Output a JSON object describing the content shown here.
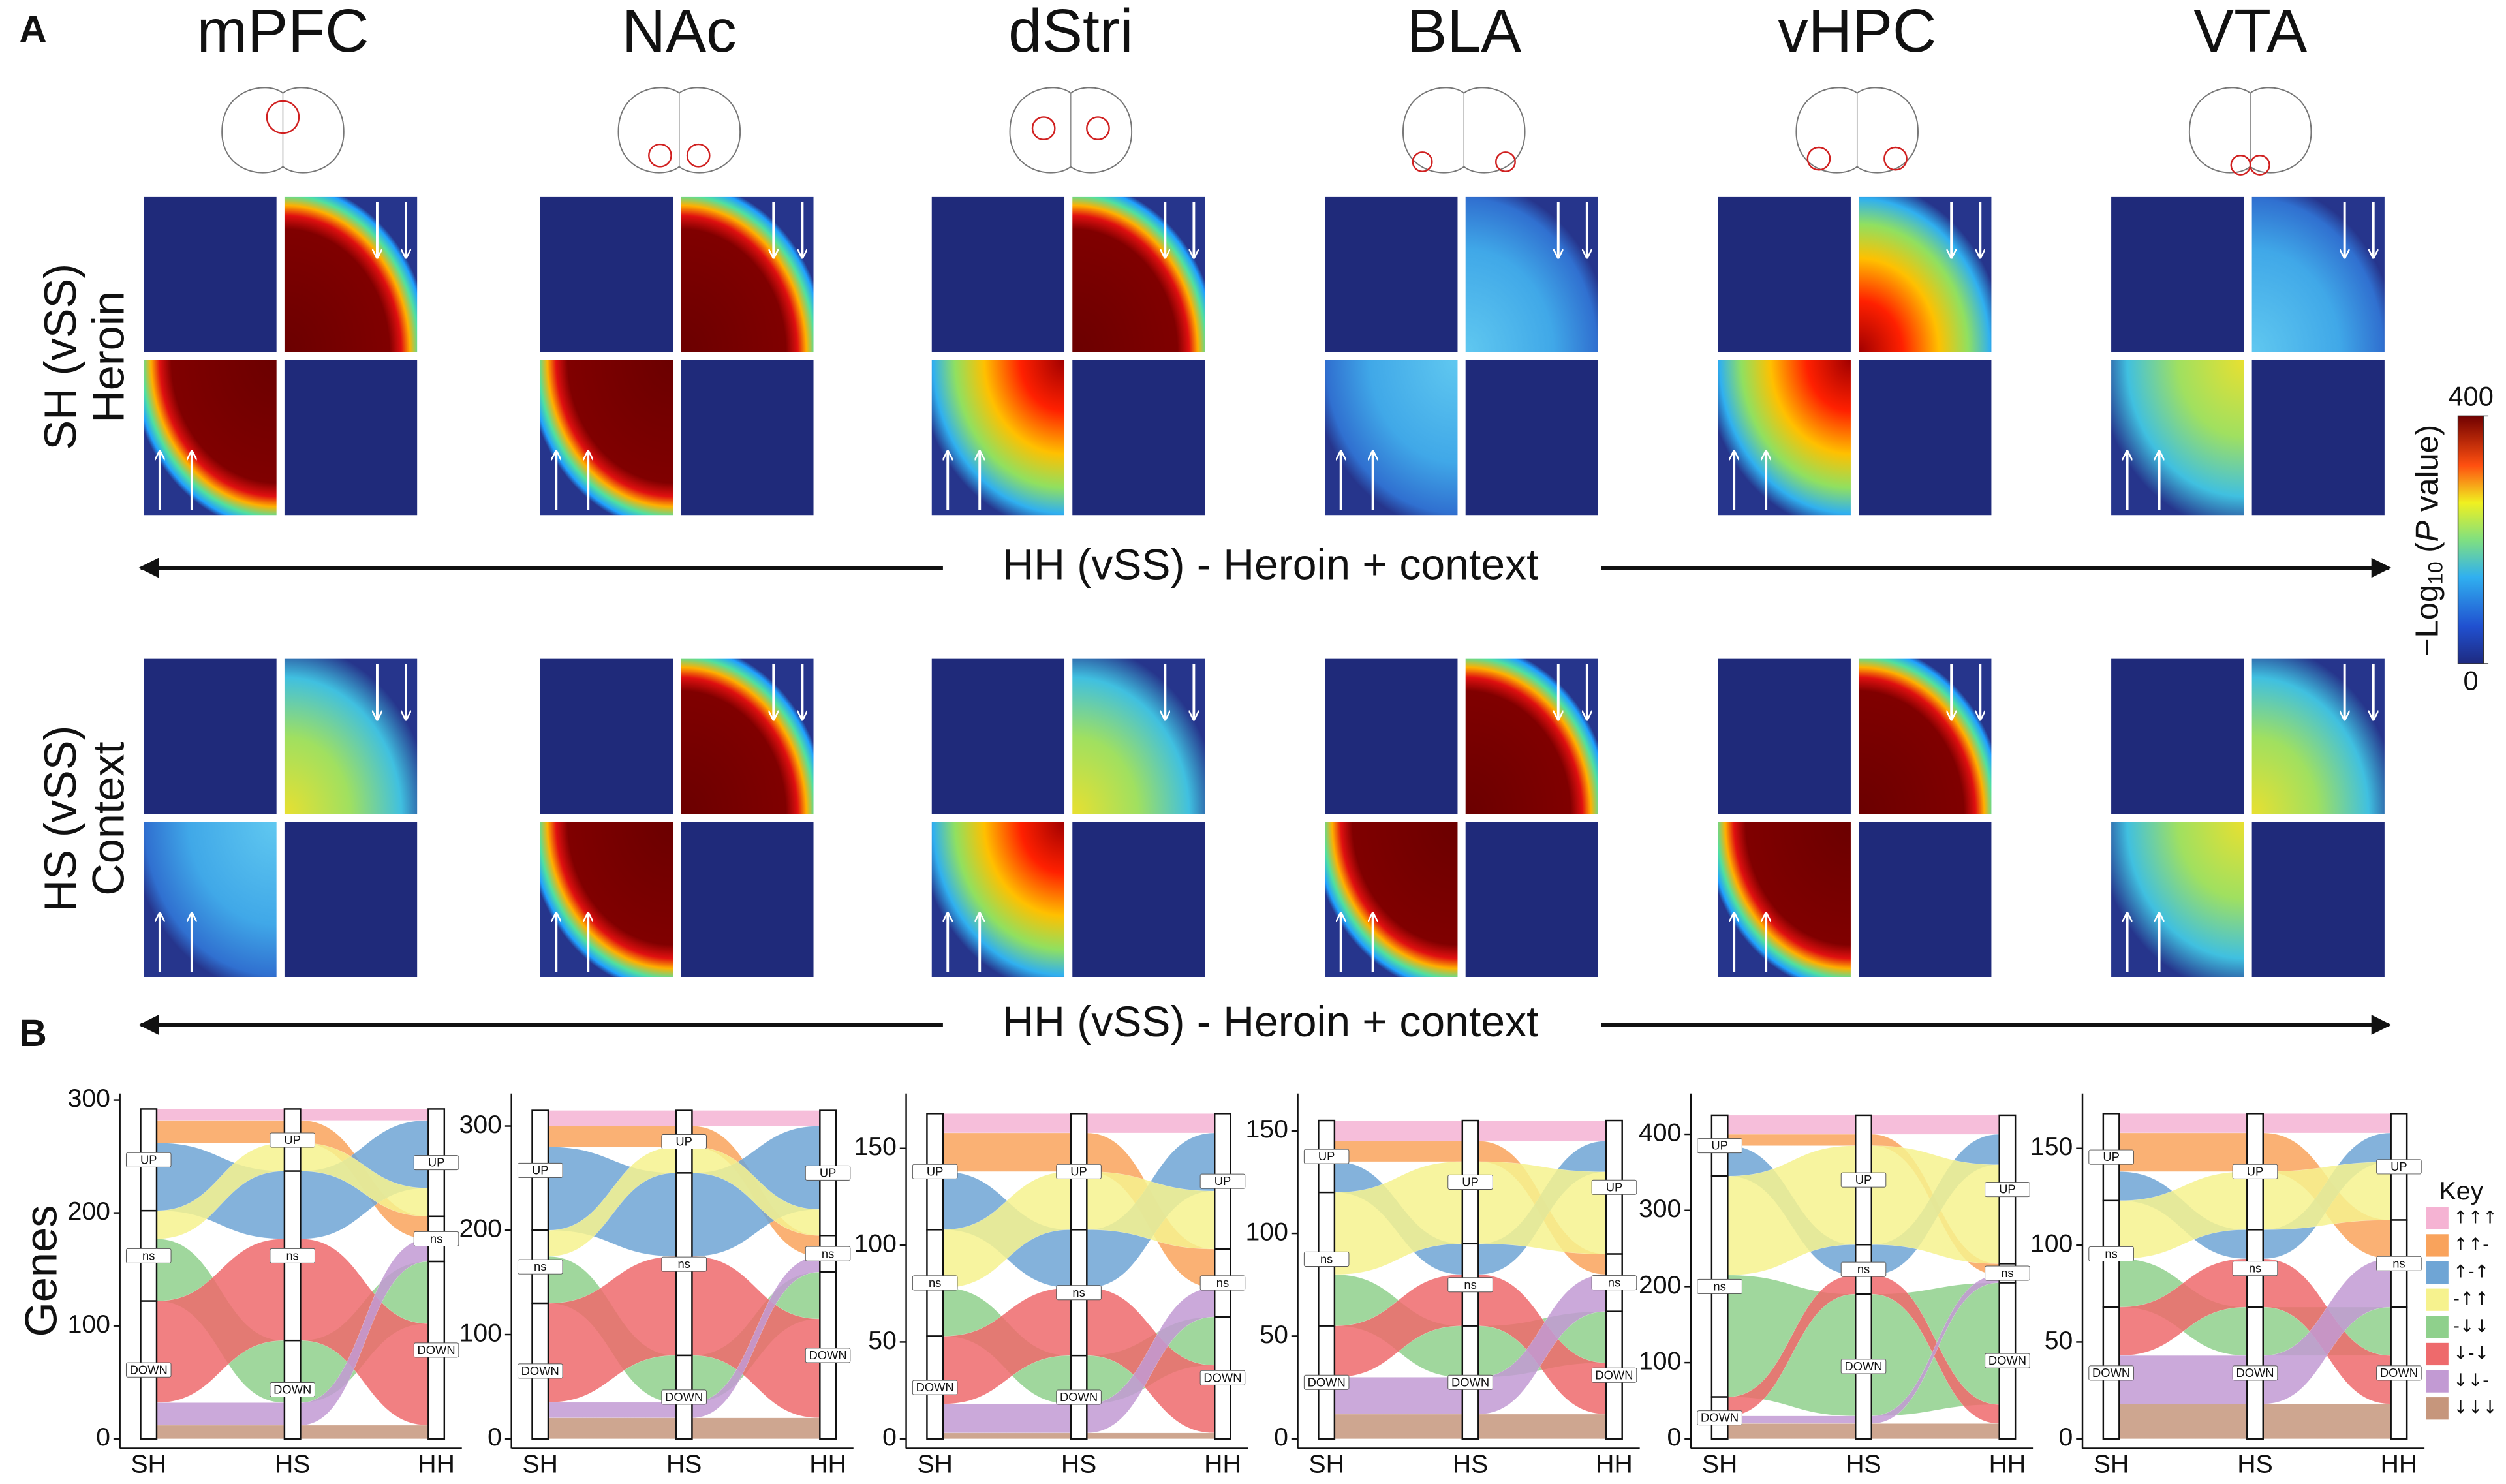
{
  "panel_a": {
    "label": "A",
    "regions": [
      "mPFC",
      "NAc",
      "dStri",
      "BLA",
      "vHPC",
      "VTA"
    ],
    "rows": [
      {
        "label": "SH (vSS)",
        "sublabel": "Heroin"
      },
      {
        "label": "HS (vSS)",
        "sublabel": "Context"
      }
    ],
    "arrow_labels": [
      "HH (vSS) - Heroin + context",
      "HH (vSS) - Heroin + context"
    ],
    "colorbar": {
      "label": [
        "−Log",
        "10",
        " (",
        "P",
        " value)"
      ],
      "lim": [
        0,
        400
      ],
      "ticks": [
        0,
        400
      ]
    }
  },
  "panel_b": {
    "label": "B",
    "y_label": "Genes",
    "axes": [
      "SH",
      "HS",
      "HH"
    ],
    "strata": [
      "UP",
      "ns",
      "DOWN"
    ],
    "key": {
      "title": "Key",
      "entries": [
        {
          "name": "↑↑↑",
          "color": "#f5b3d3"
        },
        {
          "name": "↑↑-",
          "color": "#f9a35c"
        },
        {
          "name": "↑-↑",
          "color": "#6fa5d5"
        },
        {
          "name": "-↑↑",
          "color": "#f6f28e"
        },
        {
          "name": "-↓↓",
          "color": "#8fd08c"
        },
        {
          "name": "↓-↓",
          "color": "#ee6a6c"
        },
        {
          "name": "↓↓-",
          "color": "#c29ad3"
        },
        {
          "name": "↓↓↓",
          "color": "#c6967c"
        }
      ]
    },
    "panels": [
      {
        "ylim": [
          0,
          300
        ],
        "yticks": [
          0,
          100,
          200,
          300
        ],
        "counts": [
          10,
          20,
          60,
          25,
          55,
          90,
          20,
          12
        ]
      },
      {
        "ylim": [
          0,
          325
        ],
        "yticks": [
          0,
          100,
          200,
          300
        ],
        "counts": [
          15,
          20,
          80,
          25,
          45,
          95,
          15,
          20
        ]
      },
      {
        "ylim": [
          0,
          175
        ],
        "yticks": [
          0,
          50,
          100,
          150
        ],
        "counts": [
          10,
          20,
          30,
          30,
          25,
          35,
          15,
          3
        ]
      },
      {
        "ylim": [
          0,
          165
        ],
        "yticks": [
          0,
          50,
          100,
          150
        ],
        "counts": [
          10,
          10,
          15,
          40,
          25,
          25,
          18,
          12
        ]
      },
      {
        "ylim": [
          0,
          445
        ],
        "yticks": [
          0,
          100,
          200,
          300,
          400
        ],
        "counts": [
          25,
          15,
          40,
          130,
          160,
          25,
          10,
          20
        ]
      },
      {
        "ylim": [
          0,
          175
        ],
        "yticks": [
          0,
          50,
          100,
          150
        ],
        "counts": [
          10,
          20,
          15,
          30,
          25,
          25,
          25,
          18
        ]
      }
    ]
  }
}
